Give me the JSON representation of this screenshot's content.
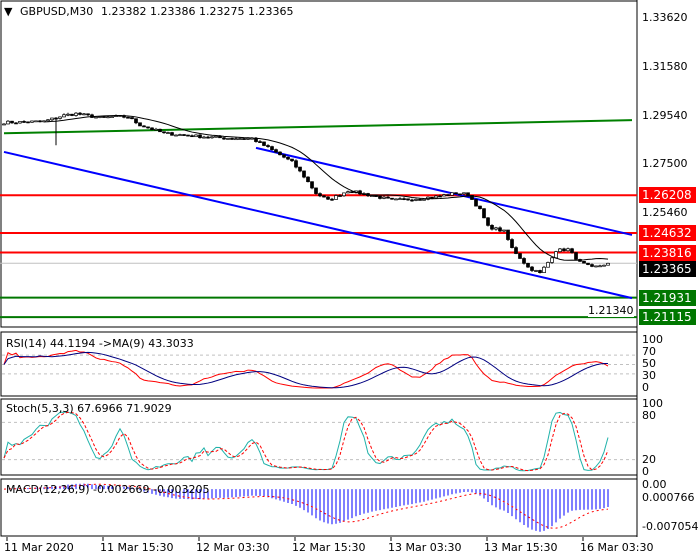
{
  "header": {
    "symbol": "GBPUSD,M30",
    "ohlc": "1.23382 1.23386 1.23275 1.23365",
    "menu_icon": "triangle-down-icon"
  },
  "price_axis": {
    "labels": [
      "1.33620",
      "1.31580",
      "1.29540",
      "1.27500",
      "1.25460",
      "1.21340"
    ],
    "values": [
      1.3362,
      1.3158,
      1.2954,
      1.275,
      1.2546,
      1.2134
    ]
  },
  "levels": [
    {
      "price": "1.26208",
      "value": 1.26208,
      "color": "#ff0000"
    },
    {
      "price": "1.24632",
      "value": 1.24632,
      "color": "#ff0000"
    },
    {
      "price": "1.23816",
      "value": 1.23816,
      "color": "#ff0000"
    },
    {
      "price": "1.21931",
      "value": 1.21931,
      "color": "#007700"
    },
    {
      "price": "1.21115",
      "value": 1.21115,
      "color": "#007700"
    }
  ],
  "current_price": {
    "price": "1.23365",
    "value": 1.23365
  },
  "trendlines": [
    {
      "color": "#0000ff",
      "from": [
        0,
        1.2802
      ],
      "to": [
        157,
        1.2191
      ]
    },
    {
      "color": "#0000ff",
      "from": [
        63,
        1.2819
      ],
      "to": [
        157,
        1.2455
      ]
    },
    {
      "color": "#008000",
      "from": [
        0,
        1.288
      ],
      "to": [
        157,
        1.2935
      ]
    }
  ],
  "price_path": [
    [
      0,
      1.2925
    ],
    [
      10,
      1.293
    ],
    [
      15,
      1.2955
    ],
    [
      18,
      1.2962
    ],
    [
      24,
      1.2945
    ],
    [
      28,
      1.295
    ],
    [
      31,
      1.2948
    ],
    [
      34,
      1.2915
    ],
    [
      40,
      1.288
    ],
    [
      48,
      1.2868
    ],
    [
      55,
      1.286
    ],
    [
      62,
      1.2858
    ],
    [
      66,
      1.282
    ],
    [
      72,
      1.276
    ],
    [
      75,
      1.27
    ],
    [
      78,
      1.263
    ],
    [
      81,
      1.26
    ],
    [
      86,
      1.264
    ],
    [
      92,
      1.262
    ],
    [
      97,
      1.26
    ],
    [
      102,
      1.2605
    ],
    [
      108,
      1.2615
    ],
    [
      113,
      1.263
    ],
    [
      116,
      1.2625
    ],
    [
      119,
      1.256
    ],
    [
      121,
      1.249
    ],
    [
      125,
      1.247
    ],
    [
      127,
      1.24
    ],
    [
      131,
      1.232
    ],
    [
      134,
      1.2295
    ],
    [
      136,
      1.234
    ],
    [
      138,
      1.239
    ],
    [
      141,
      1.2395
    ],
    [
      144,
      1.234
    ],
    [
      147,
      1.2318
    ],
    [
      151,
      1.2336
    ]
  ],
  "rsi": {
    "label": "RSI(14) 44.1194  ->MA(9) 43.3033",
    "axis": [
      "100",
      "70",
      "50",
      "30",
      "0"
    ],
    "colors": {
      "rsi": "#ff0000",
      "ma": "#000080"
    }
  },
  "stoch": {
    "label": "Stoch(5,3,3) 67.6966 71.9029",
    "axis": [
      "100",
      "80",
      "20",
      "0"
    ],
    "colors": {
      "main": "#20b2aa",
      "signal": "#ff0000"
    }
  },
  "macd": {
    "label": "MACD(12,26,9) -0.002669 -0.003205",
    "axis": [
      "0.00",
      "0.000766",
      "-0.007054"
    ],
    "colors": {
      "hist": "#0000ff",
      "signal": "#ff0000"
    }
  },
  "time_axis": [
    "11 Mar 2020",
    "11 Mar 15:30",
    "12 Mar 03:30",
    "12 Mar 15:30",
    "13 Mar 03:30",
    "13 Mar 15:30",
    "16 Mar 03:30"
  ]
}
